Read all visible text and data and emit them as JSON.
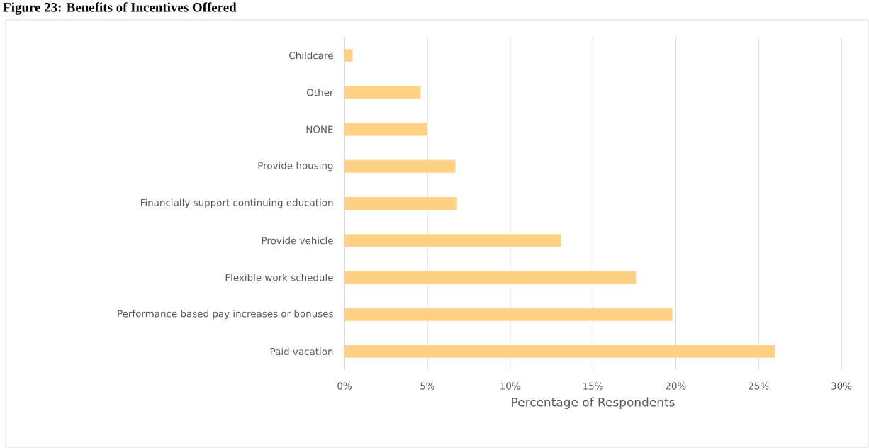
{
  "chart_data": {
    "type": "bar",
    "orientation": "horizontal",
    "title": "Figure 23: Benefits of Incentives Offered",
    "xlabel": "Percentage of Respondents",
    "categories": [
      "Childcare",
      "Other",
      "NONE",
      "Provide housing",
      "Financially support continuing education",
      "Provide vehicle",
      "Flexible work schedule",
      "Performance based pay increases or bonuses",
      "Paid vacation"
    ],
    "values": [
      0.5,
      4.6,
      5.0,
      6.7,
      6.8,
      13.1,
      17.6,
      19.8,
      26.0
    ],
    "color": "#ffd285",
    "xlim": [
      0,
      30
    ],
    "xticks": [
      {
        "value": 0,
        "label": "0%"
      },
      {
        "value": 5,
        "label": "5%"
      },
      {
        "value": 10,
        "label": "10%"
      },
      {
        "value": 15,
        "label": "15%"
      },
      {
        "value": 20,
        "label": "20%"
      },
      {
        "value": 25,
        "label": "25%"
      },
      {
        "value": 30,
        "label": "30%"
      }
    ],
    "grid": "x"
  }
}
